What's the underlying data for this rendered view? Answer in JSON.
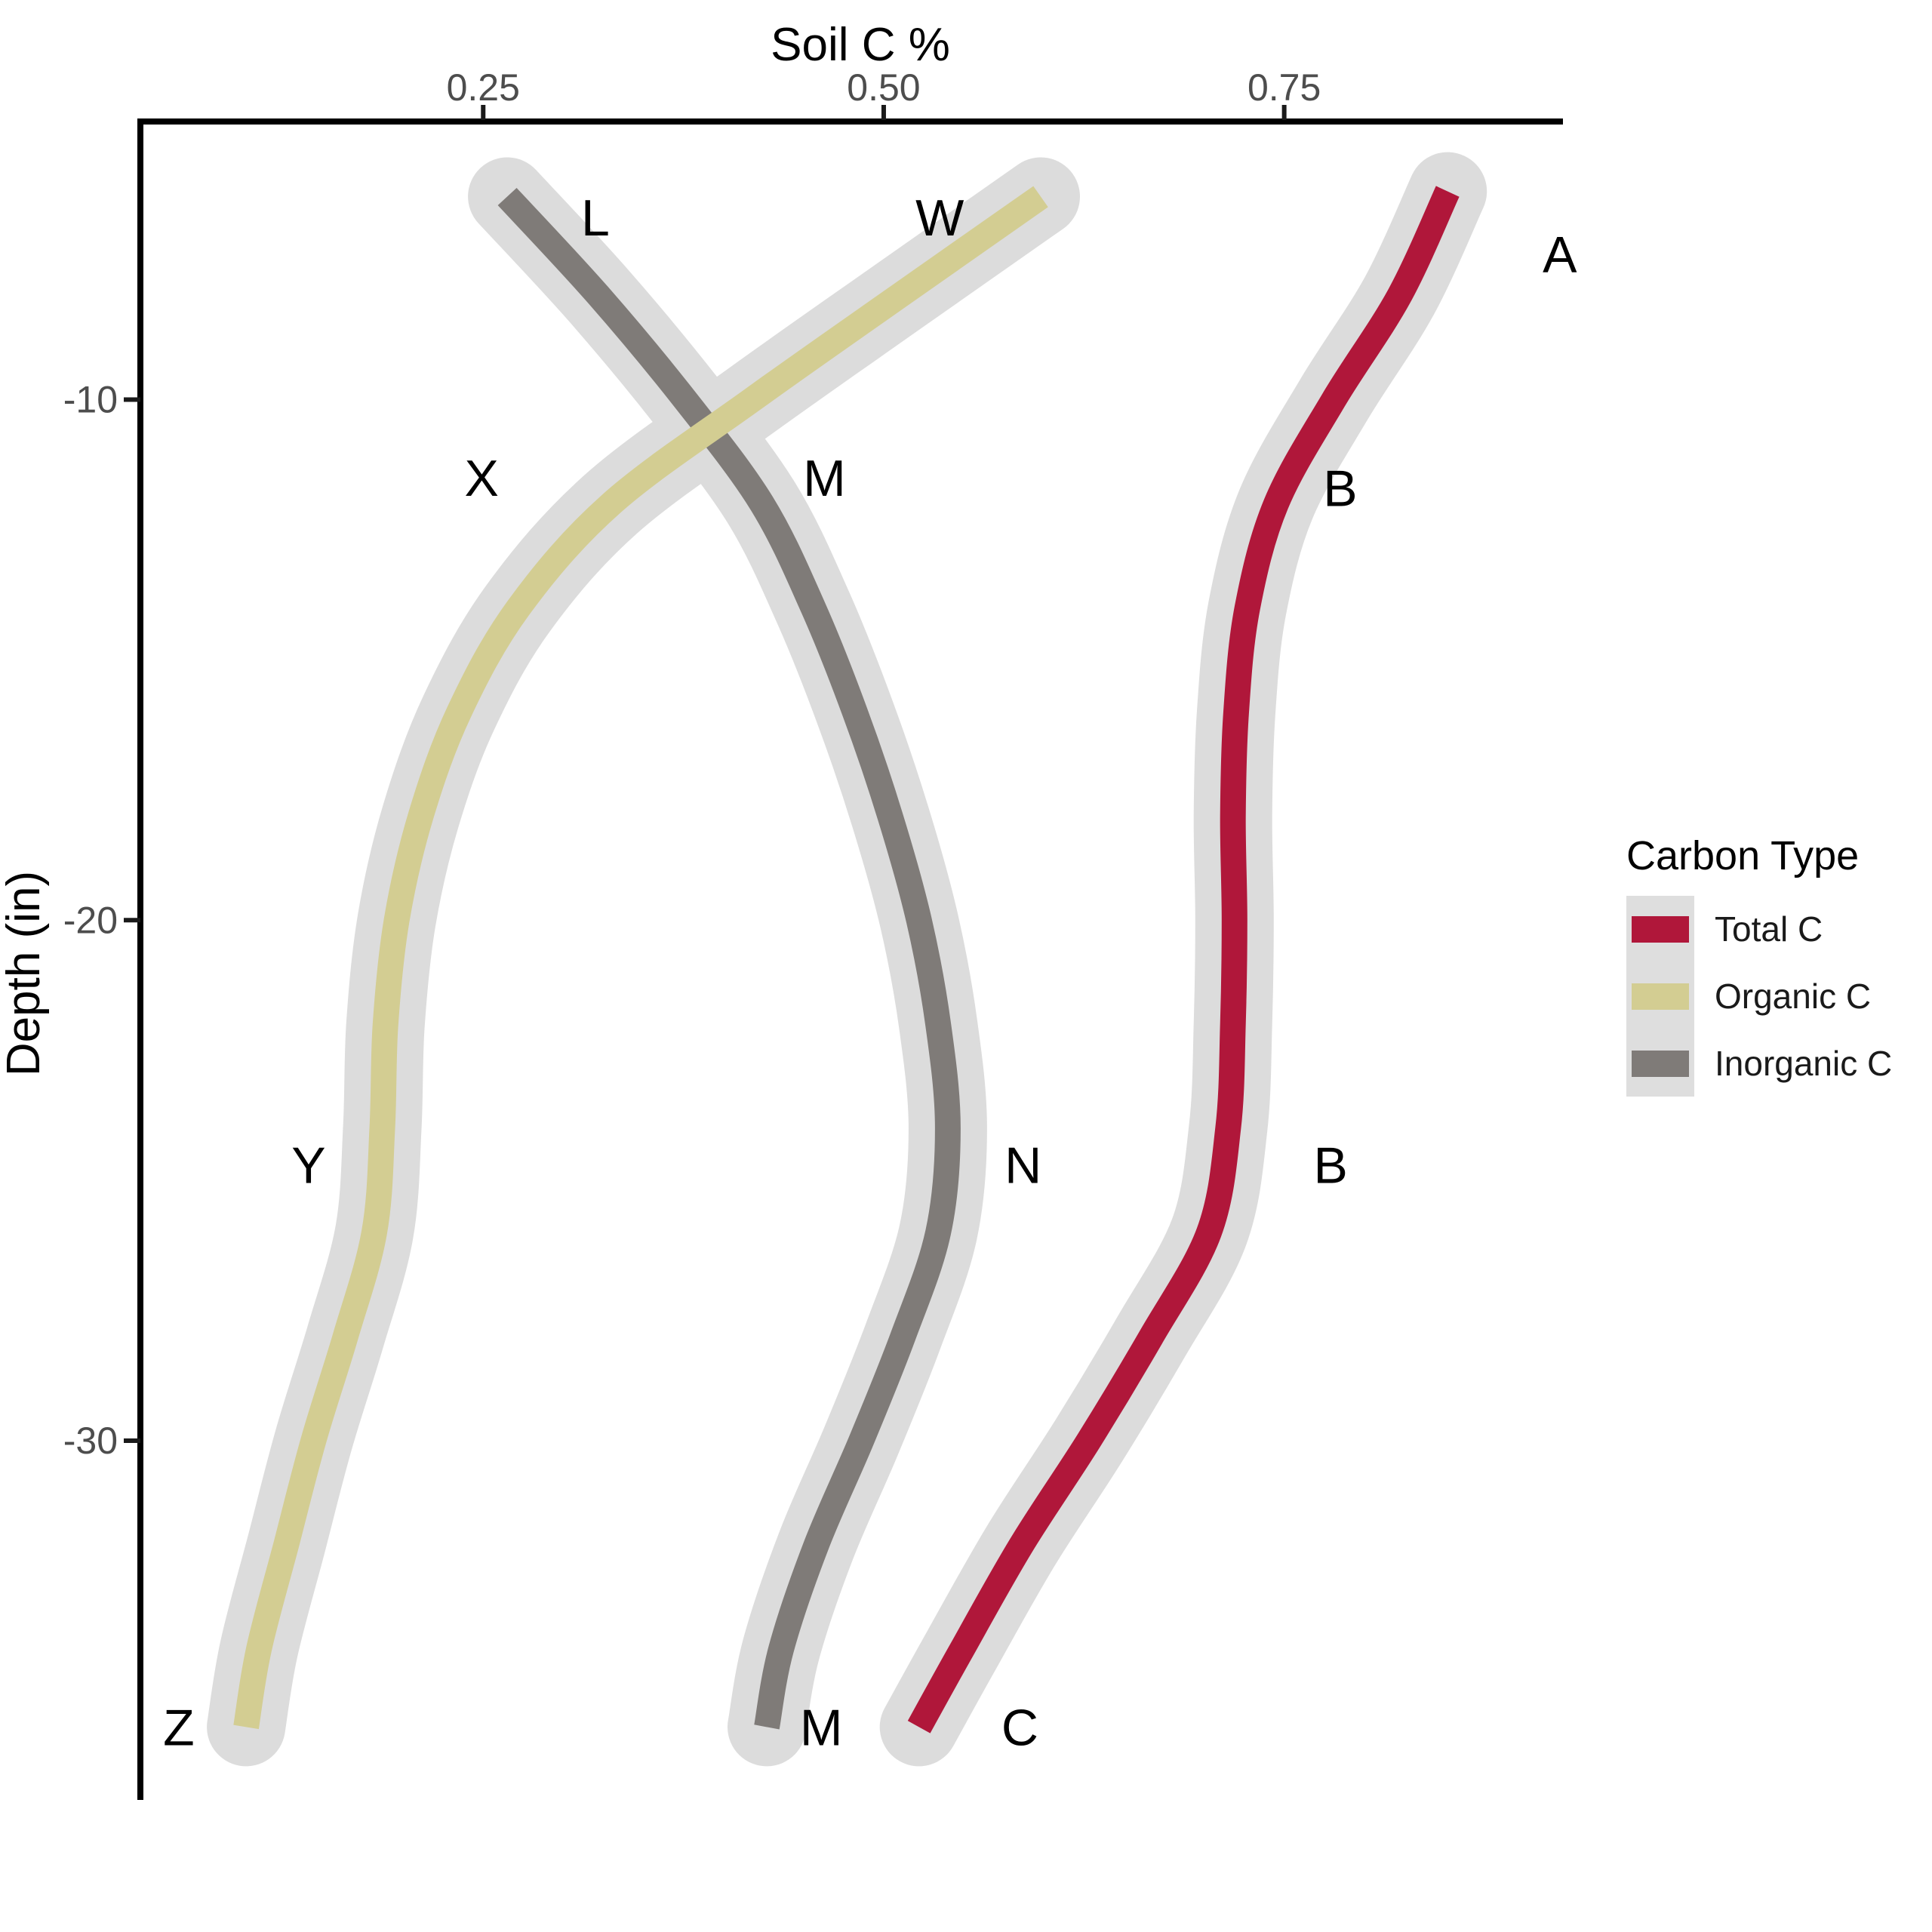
{
  "chart_data": {
    "type": "line",
    "orientation": "depth-profile",
    "title": "",
    "xlabel": "Soil C %",
    "ylabel": "Depth (in)",
    "grid": false,
    "x_axis": {
      "position": "top",
      "ticks": [
        "0.25",
        "0.50",
        "0.75"
      ],
      "tick_values": [
        0.25,
        0.5,
        0.75
      ],
      "range": [
        0.036,
        0.924
      ]
    },
    "y_axis": {
      "position": "left",
      "ticks": [
        "-10",
        "-20",
        "-30"
      ],
      "tick_values": [
        -10,
        -20,
        -30
      ],
      "range": [
        -4.6,
        -36.9
      ]
    },
    "ribbon_color": "#DCDCDC",
    "series": [
      {
        "name": "Inorganic C",
        "color": "#7F7B78",
        "points": [
          [
            -6.1,
            0.265
          ],
          [
            -8,
            0.322
          ],
          [
            -10,
            0.376
          ],
          [
            -12,
            0.424
          ],
          [
            -14,
            0.456
          ],
          [
            -16,
            0.482
          ],
          [
            -18,
            0.504
          ],
          [
            -20,
            0.522
          ],
          [
            -22,
            0.534
          ],
          [
            -24,
            0.54
          ],
          [
            -26,
            0.534
          ],
          [
            -28,
            0.512
          ],
          [
            -30,
            0.486
          ],
          [
            -32,
            0.458
          ],
          [
            -34,
            0.436
          ],
          [
            -35.5,
            0.427
          ]
        ]
      },
      {
        "name": "Organic C",
        "color": "#D3CD92",
        "points": [
          [
            -6.1,
            0.598
          ],
          [
            -8,
            0.51
          ],
          [
            -10,
            0.418
          ],
          [
            -12,
            0.33
          ],
          [
            -14,
            0.272
          ],
          [
            -16,
            0.235
          ],
          [
            -18,
            0.211
          ],
          [
            -20,
            0.196
          ],
          [
            -22,
            0.189
          ],
          [
            -24,
            0.187
          ],
          [
            -26,
            0.182
          ],
          [
            -28,
            0.164
          ],
          [
            -30,
            0.144
          ],
          [
            -32,
            0.127
          ],
          [
            -34,
            0.11
          ],
          [
            -35.5,
            0.102
          ]
        ]
      },
      {
        "name": "Total C",
        "color": "#B0173A",
        "points": [
          [
            -6.0,
            0.852
          ],
          [
            -8,
            0.822
          ],
          [
            -10,
            0.781
          ],
          [
            -12,
            0.745
          ],
          [
            -14,
            0.727
          ],
          [
            -16,
            0.72
          ],
          [
            -18,
            0.718
          ],
          [
            -20,
            0.719
          ],
          [
            -22,
            0.718
          ],
          [
            -24,
            0.715
          ],
          [
            -26,
            0.703
          ],
          [
            -28,
            0.667
          ],
          [
            -30,
            0.628
          ],
          [
            -32,
            0.586
          ],
          [
            -34,
            0.549
          ],
          [
            -35.5,
            0.522
          ]
        ]
      }
    ],
    "annotations": [
      {
        "label": "L",
        "x": 0.32,
        "y": -6.5
      },
      {
        "label": "W",
        "x": 0.535,
        "y": -6.5
      },
      {
        "label": "A",
        "x": 0.922,
        "y": -7.2
      },
      {
        "label": "X",
        "x": 0.249,
        "y": -11.5
      },
      {
        "label": "M",
        "x": 0.463,
        "y": -11.5
      },
      {
        "label": "B",
        "x": 0.785,
        "y": -11.7
      },
      {
        "label": "Y",
        "x": 0.141,
        "y": -24.7
      },
      {
        "label": "N",
        "x": 0.587,
        "y": -24.7
      },
      {
        "label": "B",
        "x": 0.779,
        "y": -24.7
      },
      {
        "label": "Z",
        "x": 0.06,
        "y": -35.5
      },
      {
        "label": "M",
        "x": 0.461,
        "y": -35.5
      },
      {
        "label": "C",
        "x": 0.585,
        "y": -35.5
      }
    ]
  },
  "legend": {
    "title": "Carbon Type",
    "key_background": "#DEDEDE",
    "items": [
      {
        "label": "Total C",
        "color": "#B0173A"
      },
      {
        "label": "Organic C",
        "color": "#D3CD92"
      },
      {
        "label": "Inorganic C",
        "color": "#7F7B78"
      }
    ]
  },
  "colors": {
    "axis_line": "#000000",
    "tick_mark": "#1a1a1a",
    "tick_text": "#4D4D4D",
    "annotation_text": "#000000",
    "background": "#FFFFFF"
  }
}
